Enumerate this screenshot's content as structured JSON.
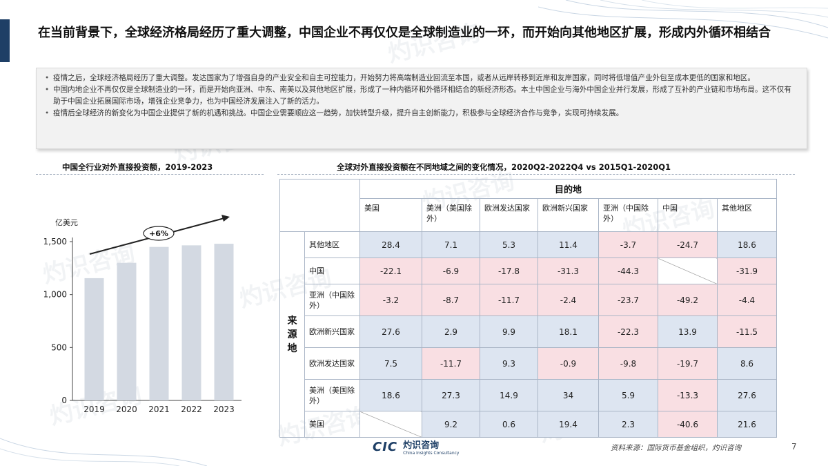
{
  "title": "在当前背景下，全球经济格局经历了重大调整，中国企业不再仅仅是全球制造业的一环，而开始向其他地区扩展，形成内外循环相结合",
  "bullets": [
    "疫情之后，全球经济格局经历了重大调整。发达国家为了增强自身的产业安全和自主可控能力，开始努力将高端制造业回流至本国，或者从远岸转移到近岸和友岸国家，同时将低增值产业外包至成本更低的国家和地区。",
    "中国内地企业不再仅仅是全球制造业的一环，而是开始向亚洲、中东、南美以及其他地区扩展，形成了一种内循环和外循环相结合的新经济形态。本土中国企业与海外中国企业并行发展，形成了互补的产业链和市场布局。这不仅有助于中国企业拓展国际市场，增强企业竞争力，也为中国经济发展注入了新的活力。",
    "疫情后全球经济的新变化为中国企业提供了新的机遇和挑战。中国企业需要顺应这一趋势，加快转型升级，提升自主创新能力，积极参与全球经济合作与竞争，实现可持续发展。"
  ],
  "watermark": {
    "cn": "灼识咨询",
    "en": "China Insights Consultancy",
    "logo": "CIC"
  },
  "footer": {
    "logo_text": "CIC",
    "logo_cn": "灼识咨询",
    "logo_en": "China Insights Consultancy",
    "source": "资料来源：国际货币基金组织，灼识咨询",
    "page": "7"
  },
  "colors": {
    "accent": "#1e3f66",
    "bar": "#d3d9e2",
    "cell_positive": "#dde5f1",
    "cell_negative": "#f9dfe3"
  },
  "chart_data": [
    {
      "type": "bar",
      "title": "中国全行业对外直接投资额，2019-2023",
      "ylabel": "亿美元",
      "categories": [
        "2019",
        "2020",
        "2021",
        "2022",
        "2023"
      ],
      "values": [
        1155,
        1300,
        1450,
        1465,
        1480
      ],
      "ylim": [
        0,
        1500
      ],
      "yticks": [
        0,
        500,
        1000,
        1500
      ],
      "ytick_labels": [
        "0",
        "500",
        "1,000",
        "1,500"
      ],
      "annotation": "+6%",
      "grid": false
    },
    {
      "type": "table",
      "title": "全球对外直接投资额在不同地域之间的变化情况，2020Q2-2022Q4 vs 2015Q1-2020Q1",
      "column_group": "目的地",
      "row_group": "来源地",
      "columns": [
        "美国",
        "美洲（美国除外）",
        "欧洲发达国家",
        "欧洲新兴国家",
        "亚洲（中国除外）",
        "中国",
        "其他地区"
      ],
      "rows": [
        {
          "label": "其他地区",
          "values": [
            28.4,
            7.1,
            5.3,
            11.4,
            -3.7,
            -24.7,
            18.6
          ]
        },
        {
          "label": "中国",
          "values": [
            -22.1,
            -6.9,
            -17.8,
            -31.3,
            -44.3,
            null,
            -31.9
          ]
        },
        {
          "label": "亚洲（中国除外）",
          "values": [
            -3.2,
            -8.7,
            -11.7,
            -2.4,
            -23.7,
            -49.2,
            -4.4
          ]
        },
        {
          "label": "欧洲新兴国家",
          "values": [
            27.6,
            2.9,
            9.9,
            18.1,
            -22.3,
            13.9,
            -11.5
          ]
        },
        {
          "label": "欧洲发达国家",
          "values": [
            7.5,
            -11.7,
            9.3,
            -0.9,
            -9.8,
            -19.7,
            8.6
          ]
        },
        {
          "label": "美洲（美国除外）",
          "values": [
            18.6,
            27.3,
            14.9,
            34,
            5.9,
            -13.3,
            27.6
          ]
        },
        {
          "label": "美国",
          "values": [
            null,
            9.2,
            0.6,
            19.4,
            2.3,
            -40.6,
            21.6
          ]
        }
      ]
    }
  ]
}
